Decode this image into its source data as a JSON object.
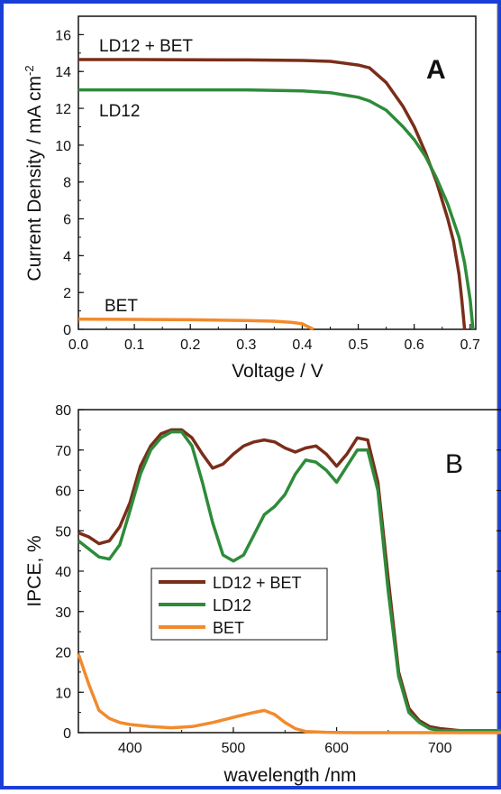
{
  "chart_data": [
    {
      "type": "line",
      "panel_label": "A",
      "xlabel": "Voltage / V",
      "ylabel": "Current Density / mA cm",
      "ylabel_sup": "-2",
      "xlim": [
        0.0,
        0.71
      ],
      "ylim": [
        0,
        17
      ],
      "xticks": [
        "0.0",
        "0.1",
        "0.2",
        "0.3",
        "0.4",
        "0.5",
        "0.6",
        "0.7"
      ],
      "yticks": [
        "0",
        "2",
        "4",
        "6",
        "8",
        "10",
        "12",
        "14",
        "16"
      ],
      "grid": false,
      "series": [
        {
          "name": "LD12 + BET",
          "color": "#7a2e1a",
          "points": [
            [
              0,
              14.65
            ],
            [
              0.1,
              14.65
            ],
            [
              0.2,
              14.64
            ],
            [
              0.3,
              14.63
            ],
            [
              0.4,
              14.6
            ],
            [
              0.45,
              14.55
            ],
            [
              0.5,
              14.35
            ],
            [
              0.52,
              14.2
            ],
            [
              0.55,
              13.4
            ],
            [
              0.58,
              12.1
            ],
            [
              0.6,
              11.0
            ],
            [
              0.62,
              9.6
            ],
            [
              0.64,
              8.0
            ],
            [
              0.66,
              6.0
            ],
            [
              0.67,
              4.8
            ],
            [
              0.68,
              3.0
            ],
            [
              0.685,
              1.6
            ],
            [
              0.69,
              0.0
            ]
          ]
        },
        {
          "name": "LD12",
          "color": "#2e8b3a",
          "points": [
            [
              0,
              13.0
            ],
            [
              0.1,
              13.0
            ],
            [
              0.2,
              13.0
            ],
            [
              0.3,
              13.0
            ],
            [
              0.4,
              12.95
            ],
            [
              0.45,
              12.85
            ],
            [
              0.5,
              12.6
            ],
            [
              0.52,
              12.4
            ],
            [
              0.55,
              11.9
            ],
            [
              0.58,
              11.0
            ],
            [
              0.6,
              10.3
            ],
            [
              0.62,
              9.4
            ],
            [
              0.64,
              8.2
            ],
            [
              0.66,
              6.8
            ],
            [
              0.68,
              5.0
            ],
            [
              0.69,
              3.6
            ],
            [
              0.7,
              1.6
            ],
            [
              0.705,
              0.0
            ]
          ]
        },
        {
          "name": "BET",
          "color": "#f28a2c",
          "points": [
            [
              0,
              0.55
            ],
            [
              0.1,
              0.54
            ],
            [
              0.2,
              0.52
            ],
            [
              0.3,
              0.48
            ],
            [
              0.35,
              0.44
            ],
            [
              0.38,
              0.38
            ],
            [
              0.4,
              0.3
            ],
            [
              0.41,
              0.15
            ],
            [
              0.42,
              0.0
            ]
          ]
        }
      ],
      "annotations": [
        "LD12 + BET",
        "LD12",
        "BET"
      ]
    },
    {
      "type": "line",
      "panel_label": "B",
      "xlabel": "wavelength /nm",
      "ylabel": "IPCE, %",
      "xlim": [
        350,
        760
      ],
      "ylim": [
        0,
        80
      ],
      "xticks": [
        "400",
        "500",
        "600",
        "700"
      ],
      "yticks": [
        "0",
        "10",
        "20",
        "30",
        "40",
        "50",
        "60",
        "70",
        "80"
      ],
      "grid": false,
      "legend_position": "lower-left",
      "legend": [
        "LD12 + BET",
        "LD12",
        "BET"
      ],
      "series": [
        {
          "name": "LD12 + BET",
          "color": "#7a2e1a",
          "points": [
            [
              350,
              49.5
            ],
            [
              360,
              48.5
            ],
            [
              370,
              46.8
            ],
            [
              380,
              47.5
            ],
            [
              390,
              51
            ],
            [
              400,
              57
            ],
            [
              410,
              66
            ],
            [
              420,
              71
            ],
            [
              430,
              74
            ],
            [
              440,
              75
            ],
            [
              450,
              75
            ],
            [
              460,
              73
            ],
            [
              470,
              69
            ],
            [
              480,
              65.5
            ],
            [
              490,
              66.5
            ],
            [
              500,
              69
            ],
            [
              510,
              71
            ],
            [
              520,
              72
            ],
            [
              530,
              72.5
            ],
            [
              540,
              72
            ],
            [
              550,
              70.5
            ],
            [
              560,
              69.5
            ],
            [
              570,
              70.5
            ],
            [
              580,
              71
            ],
            [
              590,
              69
            ],
            [
              600,
              66
            ],
            [
              610,
              69
            ],
            [
              620,
              73
            ],
            [
              630,
              72.5
            ],
            [
              640,
              62
            ],
            [
              650,
              38
            ],
            [
              660,
              15
            ],
            [
              670,
              6
            ],
            [
              680,
              3
            ],
            [
              690,
              1.5
            ],
            [
              700,
              1
            ],
            [
              720,
              0.5
            ],
            [
              760,
              0.5
            ]
          ]
        },
        {
          "name": "LD12",
          "color": "#2e8b3a",
          "points": [
            [
              350,
              47.5
            ],
            [
              360,
              45.5
            ],
            [
              370,
              43.5
            ],
            [
              380,
              43
            ],
            [
              390,
              46.5
            ],
            [
              400,
              55
            ],
            [
              410,
              64
            ],
            [
              420,
              70
            ],
            [
              430,
              73
            ],
            [
              440,
              74.5
            ],
            [
              450,
              74.5
            ],
            [
              460,
              71
            ],
            [
              470,
              62
            ],
            [
              480,
              52
            ],
            [
              490,
              44
            ],
            [
              500,
              42.5
            ],
            [
              510,
              44
            ],
            [
              520,
              49
            ],
            [
              530,
              54
            ],
            [
              540,
              56
            ],
            [
              550,
              59
            ],
            [
              560,
              64
            ],
            [
              570,
              67.5
            ],
            [
              580,
              67
            ],
            [
              590,
              65
            ],
            [
              600,
              62
            ],
            [
              610,
              66
            ],
            [
              620,
              70
            ],
            [
              630,
              70
            ],
            [
              640,
              60
            ],
            [
              650,
              35
            ],
            [
              660,
              14
            ],
            [
              670,
              5
            ],
            [
              680,
              2.5
            ],
            [
              690,
              1
            ],
            [
              700,
              0.5
            ],
            [
              720,
              0.5
            ],
            [
              760,
              0.5
            ]
          ]
        },
        {
          "name": "BET",
          "color": "#f28a2c",
          "points": [
            [
              350,
              19.5
            ],
            [
              360,
              12
            ],
            [
              370,
              5.5
            ],
            [
              380,
              3.5
            ],
            [
              390,
              2.5
            ],
            [
              400,
              2
            ],
            [
              420,
              1.5
            ],
            [
              440,
              1.2
            ],
            [
              460,
              1.5
            ],
            [
              480,
              2.5
            ],
            [
              500,
              3.8
            ],
            [
              520,
              5
            ],
            [
              530,
              5.5
            ],
            [
              540,
              4.5
            ],
            [
              550,
              2.5
            ],
            [
              560,
              1
            ],
            [
              570,
              0.3
            ],
            [
              590,
              0.1
            ],
            [
              620,
              0
            ],
            [
              760,
              0
            ]
          ]
        }
      ]
    }
  ]
}
